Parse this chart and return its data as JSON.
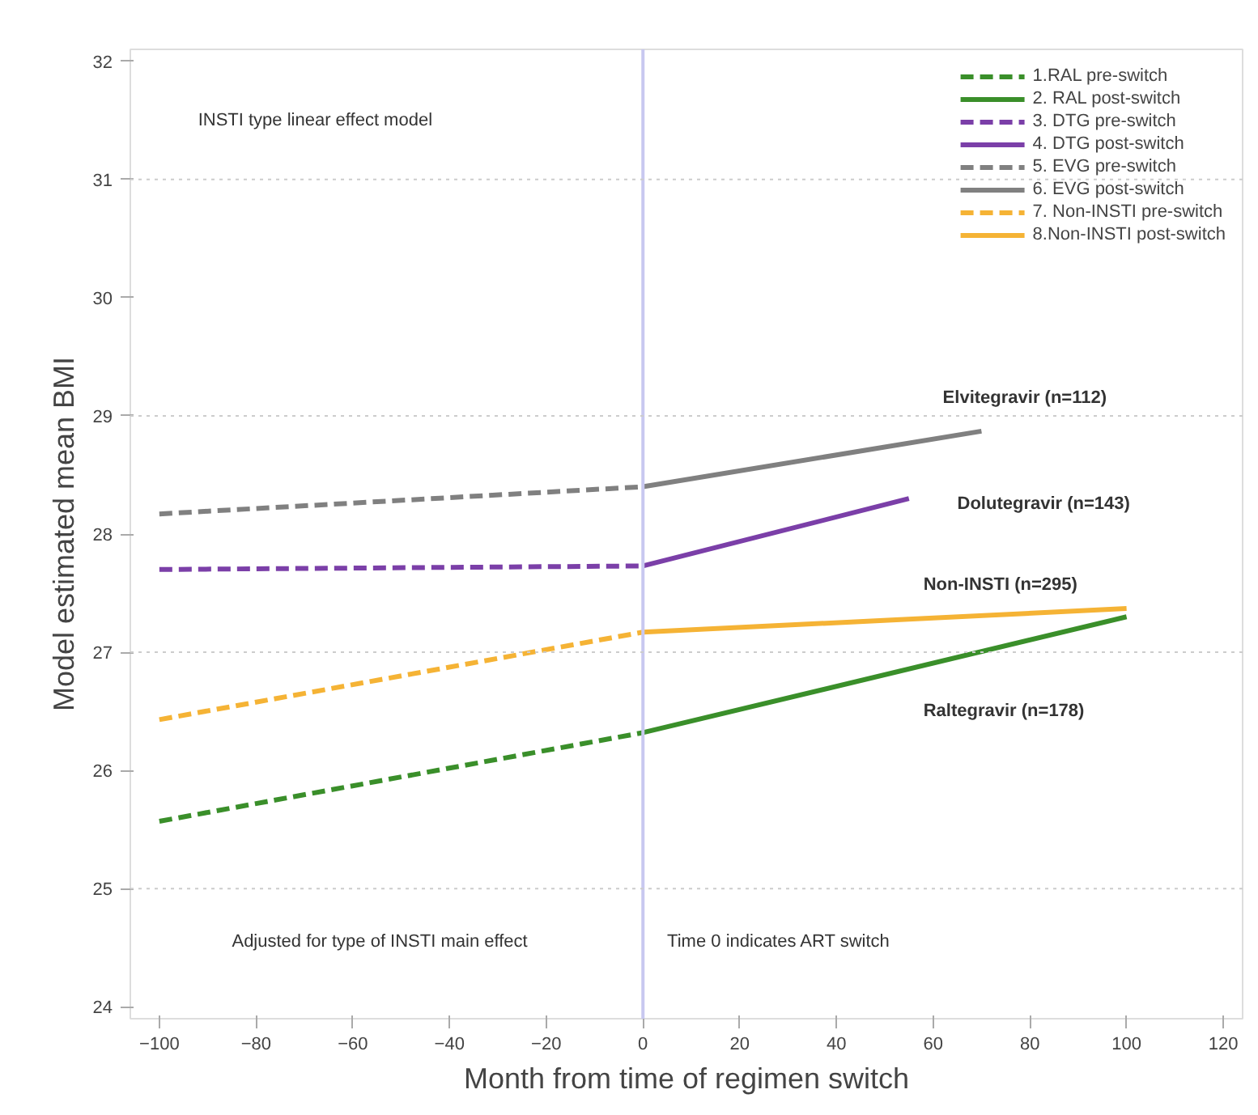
{
  "chart_data": {
    "type": "line",
    "xlabel": "Month from time of regimen switch",
    "ylabel": "Model estimated mean BMI",
    "series": [
      {
        "name": "1.RAL pre-switch",
        "color": "#3a8f2a",
        "line_style": "dashed",
        "x": [
          -100,
          0
        ],
        "values": [
          25.57,
          26.32
        ]
      },
      {
        "name": "2. RAL post-switch",
        "color": "#3a8f2a",
        "line_style": "solid",
        "x": [
          0,
          100
        ],
        "values": [
          26.32,
          27.3
        ]
      },
      {
        "name": "3. DTG pre-switch",
        "color": "#7b3fa8",
        "line_style": "dashed",
        "x": [
          -100,
          0
        ],
        "values": [
          27.7,
          27.73
        ]
      },
      {
        "name": "4. DTG post-switch",
        "color": "#7b3fa8",
        "line_style": "solid",
        "x": [
          0,
          55
        ],
        "values": [
          27.73,
          28.3
        ]
      },
      {
        "name": "5. EVG pre-switch",
        "color": "#808080",
        "line_style": "dashed",
        "x": [
          -100,
          0
        ],
        "values": [
          28.17,
          28.4
        ]
      },
      {
        "name": "6. EVG post-switch",
        "color": "#808080",
        "line_style": "solid",
        "x": [
          0,
          70
        ],
        "values": [
          28.4,
          28.87
        ]
      },
      {
        "name": "7. Non-INSTI pre-switch",
        "color": "#f5b335",
        "line_style": "dashed",
        "x": [
          -100,
          0
        ],
        "values": [
          26.43,
          27.17
        ]
      },
      {
        "name": "8.Non-INSTI post-switch",
        "color": "#f5b335",
        "line_style": "solid",
        "x": [
          0,
          100
        ],
        "values": [
          27.17,
          27.37
        ]
      }
    ],
    "xlim": [
      -106,
      124
    ],
    "ylim": [
      23.9,
      32.1
    ],
    "xticks": [
      -100,
      -80,
      -60,
      -40,
      -20,
      0,
      20,
      40,
      60,
      80,
      100,
      120
    ],
    "yticks": [
      24,
      25,
      26,
      27,
      28,
      29,
      30,
      31,
      32
    ],
    "ref_lines": [
      {
        "axis": "x",
        "value": 0,
        "color": "#c8c8f0",
        "line_style": "solid"
      },
      {
        "axis": "y",
        "value": 25,
        "color": "#cccccc",
        "line_style": "dotted"
      },
      {
        "axis": "y",
        "value": 27,
        "color": "#cccccc",
        "line_style": "dotted"
      },
      {
        "axis": "y",
        "value": 29,
        "color": "#cccccc",
        "line_style": "dotted"
      },
      {
        "axis": "y",
        "value": 31,
        "color": "#cccccc",
        "line_style": "dotted"
      }
    ],
    "annotations": [
      "INSTI type linear effect model",
      "Adjusted for type of INSTI main effect",
      "Time 0 indicates ART switch",
      "Elvitegravir (n=112)",
      "Dolutegravir (n=143)",
      "Non-INSTI (n=295)",
      "Raltegravir (n=178)"
    ],
    "grid": false,
    "legend": "top right",
    "marker": "none"
  }
}
